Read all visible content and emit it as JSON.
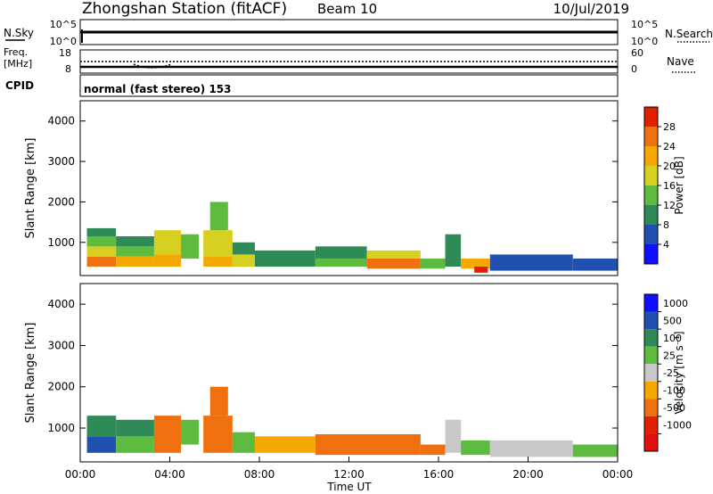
{
  "header": {
    "station": "Zhongshan Station (fitACF)",
    "beam": "Beam 10",
    "date": "10/Jul/2019"
  },
  "top_panels": {
    "nsky": {
      "label": "N.Sky",
      "ticks": [
        "10^5",
        "10^0"
      ],
      "right_ticks": [
        "10^5",
        "10^0"
      ],
      "right_label": "N.Search"
    },
    "freq": {
      "label_line1": "Freq.",
      "label_line2": "[MHz]",
      "ticks": [
        "18",
        "8"
      ],
      "right_ticks": [
        "60",
        "0"
      ],
      "right_label": "Nave"
    },
    "cpid": {
      "label": "CPID",
      "text": "normal (fast stereo) 153"
    }
  },
  "chart_data": [
    {
      "type": "heatmap",
      "title": "Power",
      "ylabel": "Slant Range [km]",
      "ylim": [
        180,
        4500
      ],
      "yticks": [
        1000,
        2000,
        3000,
        4000
      ],
      "xlim": [
        0,
        24
      ],
      "colorbar": {
        "label": "Power [dB]",
        "ticks": [
          "4",
          "8",
          "12",
          "16",
          "20",
          "24",
          "28"
        ],
        "colors": [
          "#1010ff",
          "#2050b0",
          "#2e8b57",
          "#5dbb40",
          "#d8d020",
          "#f5a800",
          "#f07010",
          "#e02000"
        ],
        "range": [
          0,
          32
        ]
      },
      "cells": [
        [
          0.3,
          1.6,
          400,
          650,
          25
        ],
        [
          0.3,
          1.6,
          650,
          900,
          18
        ],
        [
          0.3,
          1.6,
          900,
          1150,
          12
        ],
        [
          0.3,
          1.6,
          1150,
          1350,
          8
        ],
        [
          1.6,
          3.3,
          400,
          650,
          20
        ],
        [
          1.6,
          3.3,
          650,
          900,
          14
        ],
        [
          1.6,
          3.3,
          900,
          1150,
          9
        ],
        [
          3.3,
          4.5,
          400,
          700,
          22
        ],
        [
          3.3,
          4.5,
          700,
          1300,
          18
        ],
        [
          4.5,
          5.3,
          600,
          1200,
          14
        ],
        [
          5.5,
          6.8,
          400,
          650,
          22
        ],
        [
          5.5,
          6.8,
          650,
          1300,
          18
        ],
        [
          5.8,
          6.6,
          1300,
          2000,
          12
        ],
        [
          6.8,
          7.8,
          400,
          700,
          16
        ],
        [
          6.8,
          7.8,
          700,
          1000,
          10
        ],
        [
          7.8,
          10.5,
          400,
          800,
          10
        ],
        [
          10.5,
          12.8,
          400,
          600,
          14
        ],
        [
          10.5,
          12.8,
          600,
          900,
          10
        ],
        [
          12.8,
          15.2,
          350,
          600,
          24
        ],
        [
          12.8,
          15.2,
          600,
          800,
          18
        ],
        [
          15.2,
          16.3,
          350,
          600,
          14
        ],
        [
          16.3,
          17.0,
          400,
          1200,
          10
        ],
        [
          17.0,
          18.3,
          350,
          600,
          20
        ],
        [
          17.6,
          18.2,
          250,
          400,
          28
        ],
        [
          18.3,
          22.0,
          300,
          700,
          6
        ],
        [
          22.0,
          24.0,
          300,
          600,
          4
        ]
      ]
    },
    {
      "type": "heatmap",
      "title": "Velocity",
      "xlabel": "Time UT",
      "xticks": [
        "00:00",
        "04:00",
        "08:00",
        "12:00",
        "16:00",
        "20:00",
        "00:00"
      ],
      "xlim": [
        0,
        24
      ],
      "ylabel": "Slant Range [km]",
      "ylim": [
        180,
        4500
      ],
      "yticks": [
        1000,
        2000,
        3000,
        4000
      ],
      "colorbar": {
        "label": "Velocity [m s⁻¹]",
        "ticks": [
          "1000",
          "500",
          "100",
          "25",
          "-25",
          "-100",
          "-500",
          "-1000"
        ],
        "colors": [
          "#1010ff",
          "#2050b0",
          "#2e8b57",
          "#5dbb40",
          "#c8c8c8",
          "#f5a800",
          "#f07010",
          "#e02000",
          "#e01010"
        ]
      },
      "cells": [
        [
          0.3,
          1.6,
          400,
          800,
          1
        ],
        [
          0.3,
          1.6,
          800,
          1300,
          2
        ],
        [
          1.6,
          3.3,
          400,
          800,
          3
        ],
        [
          1.6,
          3.3,
          800,
          1200,
          2
        ],
        [
          3.3,
          4.5,
          400,
          1300,
          6
        ],
        [
          4.5,
          5.3,
          600,
          1200,
          3
        ],
        [
          5.5,
          6.8,
          400,
          1300,
          6
        ],
        [
          5.8,
          6.6,
          1300,
          2000,
          6
        ],
        [
          6.8,
          7.8,
          400,
          900,
          3
        ],
        [
          7.8,
          10.5,
          400,
          800,
          5
        ],
        [
          10.5,
          15.2,
          350,
          850,
          6
        ],
        [
          15.2,
          16.3,
          350,
          600,
          6
        ],
        [
          16.3,
          17.0,
          400,
          1200,
          4
        ],
        [
          17.0,
          18.3,
          350,
          700,
          3
        ],
        [
          18.3,
          22.0,
          300,
          700,
          4
        ],
        [
          22.0,
          24.0,
          300,
          600,
          3
        ]
      ]
    }
  ]
}
